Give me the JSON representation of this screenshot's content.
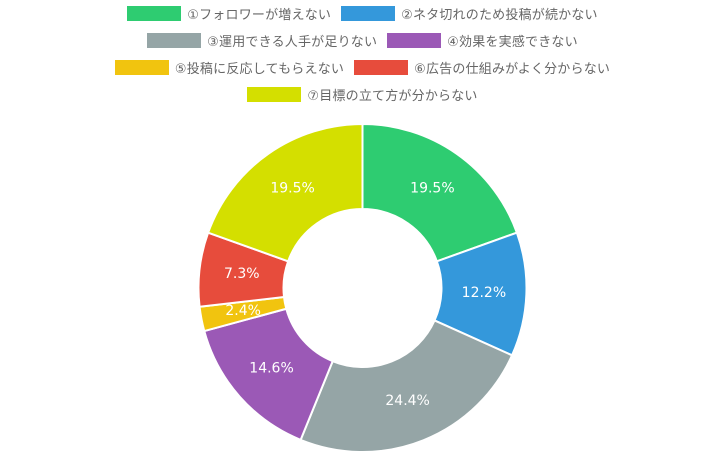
{
  "chart_data": {
    "type": "pie",
    "variant": "doughnut",
    "legend_position": "top",
    "categories": [
      "①フォロワーが増えない",
      "②ネタ切れのため投稿が続かない",
      "③運用できる人手が足りない",
      "④効果を実感できない",
      "⑤投稿に反応してもらえない",
      "⑥広告の仕組みがよく分からない",
      "⑦目標の立て方が分からない"
    ],
    "values": [
      19.5,
      12.2,
      24.4,
      14.6,
      2.4,
      7.3,
      19.5
    ],
    "value_labels": [
      "19.5%",
      "12.2%",
      "24.4%",
      "14.6%",
      "2.4%",
      "7.3%",
      "19.5%"
    ],
    "colors": [
      "#2ecc71",
      "#3498db",
      "#95a5a6",
      "#9b59b6",
      "#f1c40f",
      "#e74c3c",
      "#d4df00"
    ]
  }
}
